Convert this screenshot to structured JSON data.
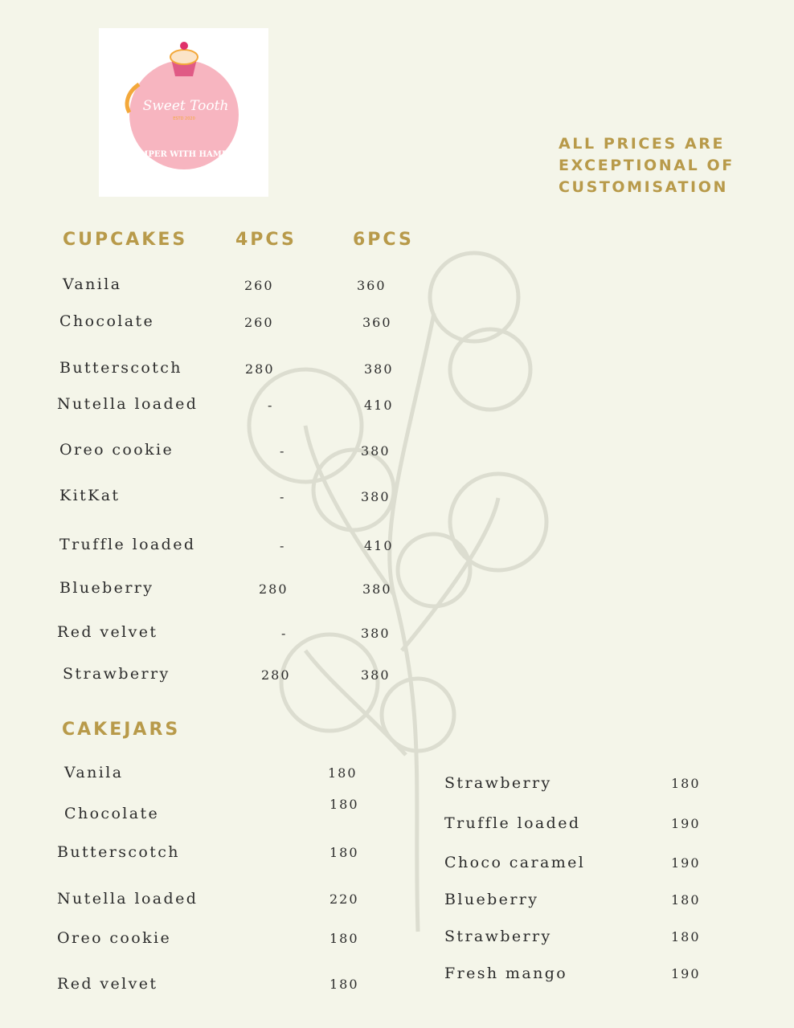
{
  "logo": {
    "brand": "Sweet Tooth",
    "estd": "ESTD 2020",
    "tagline": "PAMPER WITH HAMPER"
  },
  "note": [
    "ALL PRICES ARE",
    "EXCEPTIONAL OF",
    "CUSTOMISATION"
  ],
  "cupcakes": {
    "title": "CUPCAKES",
    "col1": "4PCS",
    "col2": "6PCS",
    "items": [
      {
        "name": "Vanila",
        "p4": "260",
        "p6": "360"
      },
      {
        "name": "Chocolate",
        "p4": "260",
        "p6": "360"
      },
      {
        "name": "Butterscotch",
        "p4": "280",
        "p6": "380"
      },
      {
        "name": "Nutella loaded",
        "p4": "-",
        "p6": "410"
      },
      {
        "name": "Oreo cookie",
        "p4": "-",
        "p6": "380"
      },
      {
        "name": "KitKat",
        "p4": "-",
        "p6": "380"
      },
      {
        "name": "Truffle loaded",
        "p4": "-",
        "p6": "410"
      },
      {
        "name": "Blueberry",
        "p4": "280",
        "p6": "380"
      },
      {
        "name": "Red velvet",
        "p4": "-",
        "p6": "380"
      },
      {
        "name": "Strawberry",
        "p4": "280",
        "p6": "380"
      }
    ]
  },
  "cakejars": {
    "title": "CAKEJARS",
    "left": [
      {
        "name": "Vanila",
        "price": "180"
      },
      {
        "name": "Chocolate",
        "price": "180"
      },
      {
        "name": "Butterscotch",
        "price": "180"
      },
      {
        "name": "Nutella loaded",
        "price": "220"
      },
      {
        "name": "Oreo cookie",
        "price": "180"
      },
      {
        "name": "Red velvet",
        "price": "180"
      }
    ],
    "right": [
      {
        "name": "Strawberry",
        "price": "180"
      },
      {
        "name": "Truffle loaded",
        "price": "190"
      },
      {
        "name": "Choco caramel",
        "price": "190"
      },
      {
        "name": "Blueberry",
        "price": "180"
      },
      {
        "name": "Strawberry",
        "price": "180"
      },
      {
        "name": "Fresh mango",
        "price": "190"
      }
    ]
  },
  "colors": {
    "background": "#f4f5e9",
    "heading": "#b89a4a",
    "logo_pink": "#f7b5c0"
  }
}
